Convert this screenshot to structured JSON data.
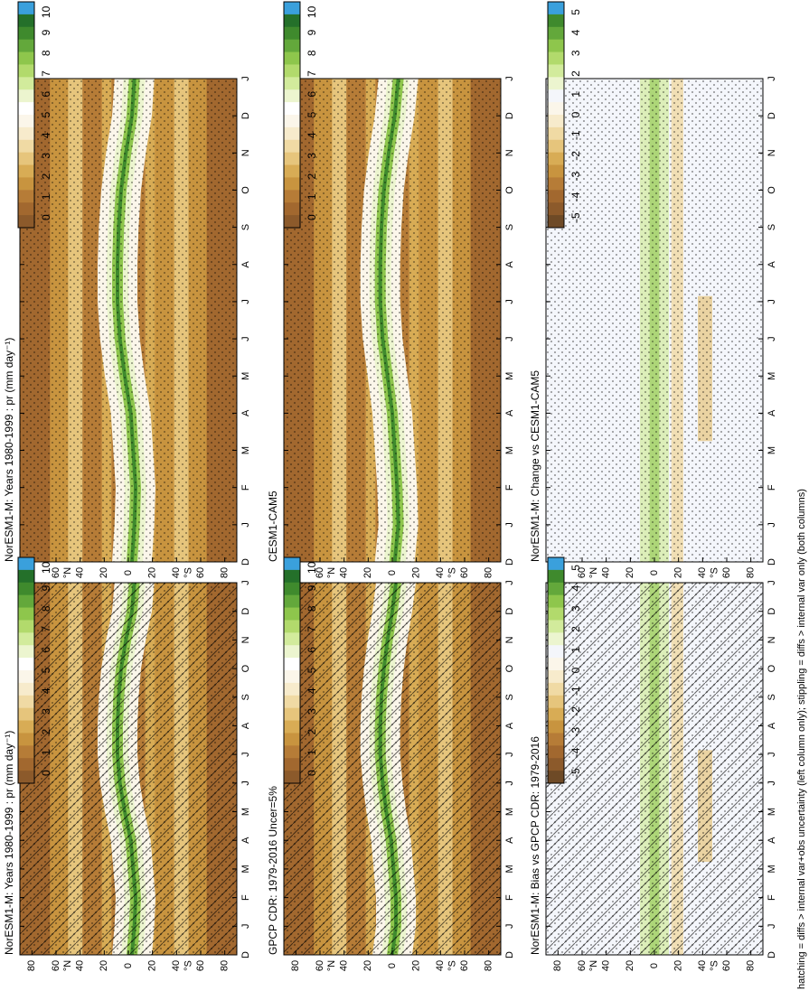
{
  "figure": {
    "footnote": "hatching = diffs > internal var+obs uncertainty (left column only); stippling = diffs > internal var only (both columns)",
    "colors": {
      "precip_scale": [
        "#8c5a2b",
        "#a2682f",
        "#b67c37",
        "#c8943f",
        "#d8ac55",
        "#e6c57c",
        "#f0daa4",
        "#f7ebcc",
        "#fbf6ea",
        "#ffffff",
        "#ecf5cf",
        "#d2eb9c",
        "#b2da6c",
        "#8ec64c",
        "#63a83b",
        "#3f8a2d",
        "#24702a",
        "#3aa0dc"
      ],
      "diff_scale": [
        "#6e4a26",
        "#8c5a2b",
        "#a2682f",
        "#b67c37",
        "#c8943f",
        "#d8ac55",
        "#e6c57c",
        "#f0daa4",
        "#f7ebcc",
        "#fbf6ea",
        "#f4f6fb",
        "#ecf5cf",
        "#d2eb9c",
        "#b2da6c",
        "#8ec64c",
        "#63a83b",
        "#3f8a2d",
        "#3aa0dc"
      ],
      "diff_background": "#f4f6fb"
    }
  },
  "chart_data": [
    {
      "type": "heatmap",
      "title": "NorESM1-M: Years 1980-1999 : pr (mm day⁻¹)",
      "variable": "precipitation",
      "month_ticks": [
        "D",
        "J",
        "F",
        "M",
        "A",
        "M",
        "J",
        "J",
        "A",
        "S",
        "O",
        "N",
        "D",
        "J"
      ],
      "lat_ticks": [
        "80",
        "60",
        "40",
        "20",
        "0",
        "20",
        "40",
        "60",
        "80"
      ],
      "lat_hemisphere_labels": [
        "°N",
        "°S"
      ],
      "colorbar": {
        "ticks": [
          "10",
          "9",
          "8",
          "7",
          "6",
          "5",
          "4",
          "3",
          "2",
          "1",
          "0"
        ],
        "range": [
          0,
          10
        ]
      },
      "itcz_lat_by_month": {
        "months": [
          "J",
          "F",
          "M",
          "A",
          "M",
          "J",
          "J",
          "A",
          "S",
          "O",
          "N",
          "D"
        ],
        "lat": [
          -5,
          -6,
          -4,
          -2,
          3,
          7,
          9,
          9,
          8,
          6,
          2,
          -3
        ]
      },
      "hatching": true,
      "stippling": true
    },
    {
      "type": "heatmap",
      "title": "NorESM1-M: Years 1980-1999 : pr (mm day⁻¹)",
      "variable": "precipitation",
      "month_ticks": [
        "D",
        "J",
        "F",
        "M",
        "A",
        "M",
        "J",
        "J",
        "A",
        "S",
        "O",
        "N",
        "D",
        "J"
      ],
      "lat_ticks": [
        "80",
        "60",
        "40",
        "20",
        "0",
        "20",
        "40",
        "60",
        "80"
      ],
      "lat_hemisphere_labels": [
        "°N",
        "°S"
      ],
      "colorbar": {
        "ticks": [
          "10",
          "9",
          "8",
          "7",
          "6",
          "5",
          "4",
          "3",
          "2",
          "1",
          "0"
        ],
        "range": [
          0,
          10
        ]
      },
      "itcz_lat_by_month": {
        "months": [
          "J",
          "F",
          "M",
          "A",
          "M",
          "J",
          "J",
          "A",
          "S",
          "O",
          "N",
          "D"
        ],
        "lat": [
          -5,
          -6,
          -4,
          -2,
          3,
          7,
          9,
          9,
          8,
          6,
          2,
          -3
        ]
      },
      "hatching": false,
      "stippling": true
    },
    {
      "type": "heatmap",
      "title": "GPCP CDR: 1979-2016 Uncer=5%",
      "variable": "precipitation",
      "month_ticks": [
        "D",
        "J",
        "F",
        "M",
        "A",
        "M",
        "J",
        "J",
        "A",
        "S",
        "O",
        "N",
        "D",
        "J"
      ],
      "lat_ticks": [
        "80",
        "60",
        "40",
        "20",
        "0",
        "20",
        "40",
        "60",
        "80"
      ],
      "lat_hemisphere_labels": [
        "°N",
        "°S"
      ],
      "colorbar": {
        "ticks": [
          "10",
          "9",
          "8",
          "7",
          "6",
          "5",
          "4",
          "3",
          "2",
          "1",
          "0"
        ],
        "range": [
          0,
          10
        ]
      },
      "itcz_lat_by_month": {
        "months": [
          "J",
          "F",
          "M",
          "A",
          "M",
          "J",
          "J",
          "A",
          "S",
          "O",
          "N",
          "D"
        ],
        "lat": [
          -3,
          -3,
          -1,
          1,
          5,
          8,
          10,
          10,
          9,
          7,
          4,
          0
        ]
      },
      "hatching": true,
      "stippling": true
    },
    {
      "type": "heatmap",
      "title": "CESM1-CAM5",
      "variable": "precipitation",
      "month_ticks": [
        "D",
        "J",
        "F",
        "M",
        "A",
        "M",
        "J",
        "J",
        "A",
        "S",
        "O",
        "N",
        "D",
        "J"
      ],
      "lat_ticks": [
        "80",
        "60",
        "40",
        "20",
        "0",
        "20",
        "40",
        "60",
        "80"
      ],
      "lat_hemisphere_labels": [
        "°N",
        "°S"
      ],
      "colorbar": {
        "ticks": [
          "10",
          "9",
          "8",
          "7",
          "6",
          "5",
          "4",
          "3",
          "2",
          "1",
          "0"
        ],
        "range": [
          0,
          10
        ]
      },
      "itcz_lat_by_month": {
        "months": [
          "J",
          "F",
          "M",
          "A",
          "M",
          "J",
          "J",
          "A",
          "S",
          "O",
          "N",
          "D"
        ],
        "lat": [
          -5,
          -4,
          -2,
          0,
          4,
          8,
          10,
          10,
          9,
          7,
          3,
          -2
        ]
      },
      "hatching": false,
      "stippling": true
    },
    {
      "type": "heatmap",
      "title": "NorESM1-M: Bias vs GPCP CDR: 1979-2016",
      "variable": "precipitation difference",
      "month_ticks": [
        "D",
        "J",
        "F",
        "M",
        "A",
        "M",
        "J",
        "J",
        "A",
        "S",
        "O",
        "N",
        "D",
        "J"
      ],
      "lat_ticks": [
        "80",
        "60",
        "40",
        "20",
        "0",
        "20",
        "40",
        "60",
        "80"
      ],
      "lat_hemisphere_labels": [
        "°N",
        "°S"
      ],
      "colorbar": {
        "ticks": [
          "5",
          "4",
          "3",
          "2",
          "1",
          "0",
          "-1",
          "-2",
          "-3",
          "-4",
          "-5"
        ],
        "range": [
          -5,
          5
        ]
      },
      "hatching": true,
      "stippling": true
    },
    {
      "type": "heatmap",
      "title": "NorESM1-M: Change vs CESM1-CAM5",
      "variable": "precipitation difference",
      "month_ticks": [
        "D",
        "J",
        "F",
        "M",
        "A",
        "M",
        "J",
        "J",
        "A",
        "S",
        "O",
        "N",
        "D",
        "J"
      ],
      "lat_ticks": [
        "80",
        "60",
        "40",
        "20",
        "0",
        "20",
        "40",
        "60",
        "80"
      ],
      "lat_hemisphere_labels": [
        "°N",
        "°S"
      ],
      "colorbar": {
        "ticks": [
          "5",
          "4",
          "3",
          "2",
          "1",
          "0",
          "-1",
          "-2",
          "-3",
          "-4",
          "-5"
        ],
        "range": [
          -5,
          5
        ]
      },
      "hatching": false,
      "stippling": true
    }
  ]
}
